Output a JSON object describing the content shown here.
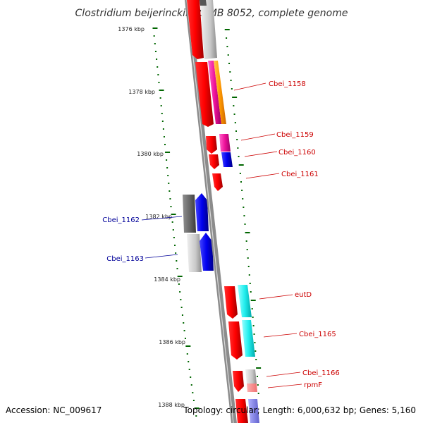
{
  "map": {
    "title": "Clostridium beijerinckii NCIMB 8052, complete genome",
    "accession": "Accession: NC_009617",
    "summary": "Topology: circular; Length: 6,000,632 bp; Genes: 5,160",
    "tick_labels": [
      "1376 kbp",
      "1378 kbp",
      "1380 kbp",
      "1382 kbp",
      "1384 kbp",
      "1386 kbp",
      "1388 kbp"
    ],
    "genes": [
      {
        "name": "Cbei_1158",
        "strand": "forward"
      },
      {
        "name": "Cbei_1159",
        "strand": "forward"
      },
      {
        "name": "Cbei_1160",
        "strand": "forward"
      },
      {
        "name": "Cbei_1161",
        "strand": "forward"
      },
      {
        "name": "Cbei_1162",
        "strand": "reverse"
      },
      {
        "name": "Cbei_1163",
        "strand": "reverse"
      },
      {
        "name": "eutD",
        "strand": "forward"
      },
      {
        "name": "Cbei_1165",
        "strand": "forward"
      },
      {
        "name": "Cbei_1166",
        "strand": "forward"
      },
      {
        "name": "rpmF",
        "strand": "forward"
      }
    ],
    "colors": {
      "forward_label": "#cc0000",
      "reverse_label": "#000099",
      "cds": "#ff0000",
      "tick": "#006600",
      "backbone": "#888888"
    }
  }
}
